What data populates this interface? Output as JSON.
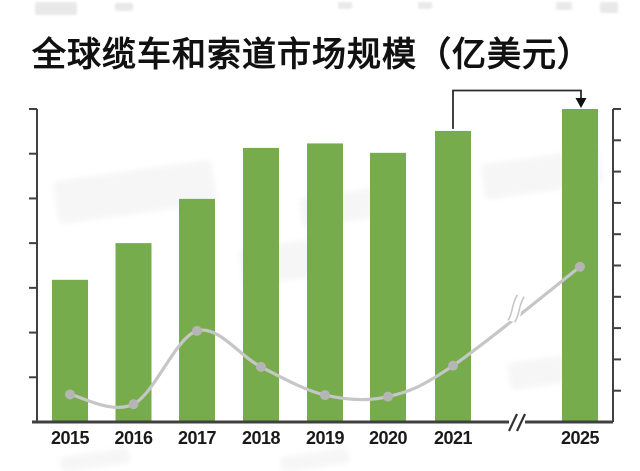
{
  "title": {
    "text": "全球缆车和索道市场规模（亿美元）"
  },
  "chart_data": {
    "type": "bar",
    "title": "全球缆车和索道市场规模（亿美元）",
    "categories": [
      "2015",
      "2016",
      "2017",
      "2018",
      "2019",
      "2020",
      "2021",
      "2025"
    ],
    "series": [
      {
        "name": "市场规模柱形（绿色，亿美元）",
        "type": "bar",
        "axis": "left",
        "values": [
          3.18,
          4.0,
          4.99,
          6.13,
          6.23,
          6.02,
          6.51,
          7.0
        ]
      },
      {
        "name": "趋势折线（灰色，带圆点）",
        "type": "line",
        "axis": "right",
        "values": [
          0.88,
          0.57,
          2.91,
          1.76,
          0.86,
          0.81,
          1.8,
          4.96
        ]
      }
    ],
    "xlabel": "",
    "ylabel": "",
    "left_axis": {
      "min": 0,
      "max": 7,
      "tick_count": 7,
      "numeric_labels_visible": false
    },
    "right_axis": {
      "min": 0,
      "max": 10,
      "tick_count": 10,
      "numeric_labels_visible": false
    },
    "legend_position": "none",
    "grid": false,
    "axis_break": {
      "x_axis_between": [
        "2021",
        "2025"
      ],
      "line_break_between": [
        "2021",
        "2025"
      ]
    },
    "annotations": {
      "bracket_arrow": {
        "from_category": "2021",
        "to_category": "2025",
        "shape": "right-angle connector from top of 2021 bar, across, arrow points down onto top of 2025 bar"
      }
    },
    "note": "Both y-axes show tick marks only (no numeric labels); series values are estimated in axis tick units read from the plot."
  },
  "colors": {
    "bar_green": "#76ac4b",
    "line_gray": "#c6c6c6",
    "marker_gray": "#b5b5b5",
    "axis_dark": "#404040",
    "bracket_dark": "#2b2b2b",
    "label_dark": "#1a1a1a",
    "background": "#ffffff"
  }
}
